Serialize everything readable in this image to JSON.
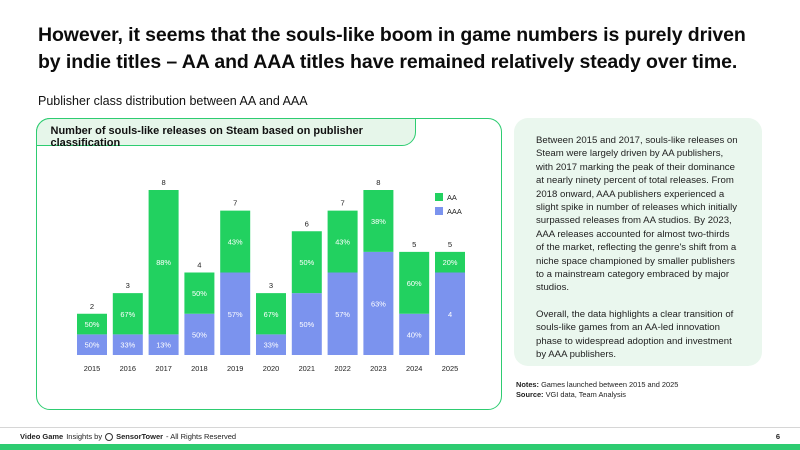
{
  "headline": "However, it seems that the souls-like boom in game numbers is purely driven by indie titles – AA and AAA titles have remained relatively steady over time.",
  "subtitle": "Publisher class distribution between AA and AAA",
  "chart_card_title": "Number of souls-like releases on Steam based on publisher classification",
  "side_panel": {
    "paragraph_1": "Between 2015 and 2017, souls-like releases on Steam were largely driven by AA publishers, with 2017 marking the peak of their dominance at nearly ninety percent of total releases. From 2018 onward, AAA publishers experienced a slight spike in number of releases which initially surpassed releases from AA studios. By 2023, AAA releases accounted for almost two-thirds of the market, reflecting the genre's shift from a niche space championed by smaller publishers to a mainstream category embraced by major studios.",
    "paragraph_2": "Overall, the data highlights a clear transition of souls-like games from an AA-led innovation phase to widespread adoption and investment by AAA publishers."
  },
  "notes": {
    "notes_label": "Notes:",
    "notes_text": "Games launched between 2015 and 2025",
    "source_label": "Source:",
    "source_text": "VGI data, Team Analysis"
  },
  "footer": {
    "brand_a": "Video Game",
    "brand_b": "Insights by",
    "brand_c": "SensorTower",
    "rights": "- All Rights Reserved",
    "page_number": "6"
  },
  "colors": {
    "aa": "#22d160",
    "aaa": "#7b93ee",
    "accent": "#2ecc71"
  },
  "chart_data": {
    "type": "bar",
    "stacked": true,
    "title": "Number of souls-like releases on Steam based on publisher classification",
    "categories": [
      "2015",
      "2016",
      "2017",
      "2018",
      "2019",
      "2020",
      "2021",
      "2022",
      "2023",
      "2024",
      "2025"
    ],
    "series": [
      {
        "name": "AAA",
        "values": [
          1,
          1,
          1,
          2,
          4,
          1,
          3,
          4,
          5,
          2,
          4
        ],
        "labels": [
          "50%",
          "33%",
          "13%",
          "50%",
          "57%",
          "33%",
          "50%",
          "57%",
          "63%",
          "40%",
          "4"
        ]
      },
      {
        "name": "AA",
        "values": [
          1,
          2,
          7,
          2,
          3,
          2,
          3,
          3,
          3,
          3,
          1
        ],
        "labels": [
          "50%",
          "67%",
          "88%",
          "50%",
          "43%",
          "67%",
          "50%",
          "43%",
          "38%",
          "60%",
          "20%"
        ]
      }
    ],
    "totals": [
      2,
      3,
      8,
      4,
      7,
      3,
      6,
      7,
      8,
      5,
      5
    ],
    "legend": [
      "AA",
      "AAA"
    ],
    "ylim": [
      0,
      8
    ],
    "grid": false,
    "legend_position": "top-right"
  }
}
